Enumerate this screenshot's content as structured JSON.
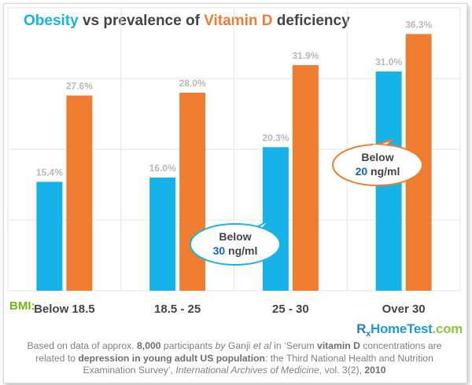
{
  "title": {
    "part1": "Obesity",
    "part2": " vs prevalence of ",
    "part3": "Vitamin D",
    "part4": " deficiency"
  },
  "colors": {
    "blue": "#17b3e8",
    "orange": "#ee7d31",
    "green": "#7ab317",
    "grid": "#e6e6e6",
    "text": "#444444"
  },
  "bmi_label": "BMI:",
  "chart_data": {
    "type": "bar",
    "categories": [
      "Below 18.5",
      "18.5 - 25",
      "25 - 30",
      "Over 30"
    ],
    "series": [
      {
        "values": [
          15.4,
          16.0,
          20.3,
          31.0
        ],
        "labels": [
          "15.4%",
          "16.0%",
          "20.3%",
          "31.0%"
        ],
        "color": "#17b3e8"
      },
      {
        "values": [
          27.6,
          28.0,
          31.9,
          36.3
        ],
        "labels": [
          "27.6%",
          "28.0%",
          "31.9%",
          "36.3%"
        ],
        "color": "#ee7d31"
      }
    ],
    "ylim": [
      0,
      40
    ],
    "grid": true,
    "callouts": [
      {
        "line1": "Below",
        "value": "30",
        "unit": " ng/ml",
        "color": "#17b3e8",
        "series_index": 0
      },
      {
        "line1": "Below",
        "value": "20",
        "unit": " ng/ml",
        "color": "#ee7d31",
        "series_index": 1
      }
    ]
  },
  "brand": {
    "rx_r": "R",
    "rx_x": "x",
    "home": "HomeTest",
    "dotcom": ".com"
  },
  "footnote": {
    "s1": "Based on data of approx. ",
    "b1": "8,000",
    "s2": " participants ",
    "i1": "by",
    "s3": " Ganji ",
    "i2": "et al",
    "s4": " in ‘Serum ",
    "b2": "vitamin D",
    "s5": " concentrations are related to ",
    "b3": "depression in young adult US population",
    "s6": ": the Third National Health and Nutrition Examination Survey’, ",
    "i3": "International Archives of Medicine",
    "s7": ", vol. 3(2), ",
    "b4": "2010"
  }
}
